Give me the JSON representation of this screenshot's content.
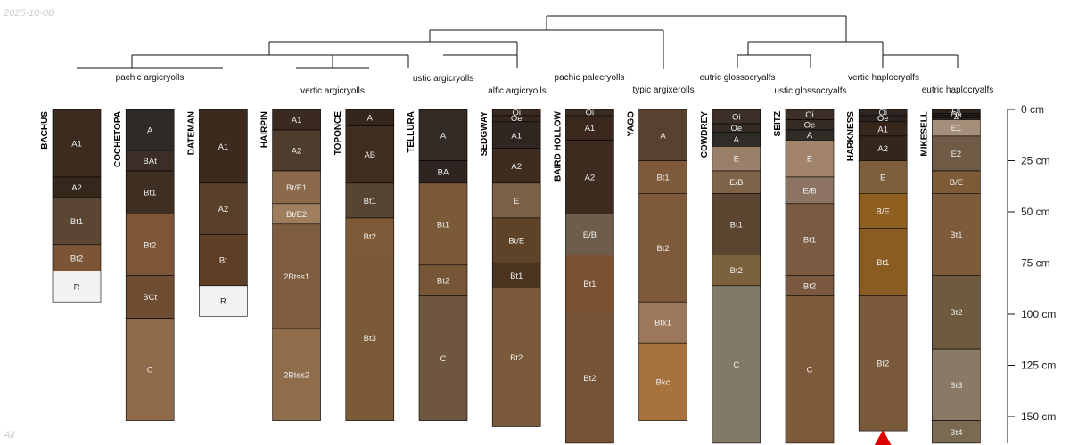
{
  "date_stamp": "2025-10-08",
  "footer_label": "All",
  "axis": {
    "unit": "cm",
    "ticks": [
      0,
      25,
      50,
      75,
      100,
      125,
      150
    ],
    "tick_labels": [
      "0 cm",
      "25 cm",
      "50 cm",
      "75 cm",
      "100 cm",
      "125 cm",
      "150 cm"
    ],
    "max_depth": 163
  },
  "clades": [
    {
      "label": "pachic argicryolls"
    },
    {
      "label": "vertic argicryolls"
    },
    {
      "label": "ustic argicryolls"
    },
    {
      "label": "alfic argicryolls"
    },
    {
      "label": "pachic palecryolls"
    },
    {
      "label": "typic argixerolls"
    },
    {
      "label": "eutric glossocryalfs"
    },
    {
      "label": "ustic glossocryalfs"
    },
    {
      "label": "vertic haplocryalfs"
    },
    {
      "label": "eutric haplocryalfs"
    }
  ],
  "profiles": [
    {
      "name": "BACHUS",
      "horizons": [
        {
          "name": "A1",
          "top": 0,
          "bottom": 33,
          "color": "#3d2b1f"
        },
        {
          "name": "A2",
          "top": 33,
          "bottom": 43,
          "color": "#35271c"
        },
        {
          "name": "Bt1",
          "top": 43,
          "bottom": 66,
          "color": "#5a4632"
        },
        {
          "name": "Bt2",
          "top": 66,
          "bottom": 79,
          "color": "#7b5535"
        },
        {
          "name": "R",
          "top": 79,
          "bottom": 94,
          "color": "#f2f2f2"
        }
      ]
    },
    {
      "name": "COCHETOPA",
      "horizons": [
        {
          "name": "A",
          "top": 0,
          "bottom": 20,
          "color": "#302a26"
        },
        {
          "name": "BAt",
          "top": 20,
          "bottom": 30,
          "color": "#3a2e26"
        },
        {
          "name": "Bt1",
          "top": 30,
          "bottom": 51,
          "color": "#3f2e22"
        },
        {
          "name": "Bt2",
          "top": 51,
          "bottom": 81,
          "color": "#7d5638"
        },
        {
          "name": "BCt",
          "top": 81,
          "bottom": 102,
          "color": "#6f4d33"
        },
        {
          "name": "C",
          "top": 102,
          "bottom": 152,
          "color": "#8f6a4b"
        }
      ]
    },
    {
      "name": "DATEMAN",
      "horizons": [
        {
          "name": "A1",
          "top": 0,
          "bottom": 36,
          "color": "#3d2a1f"
        },
        {
          "name": "A2",
          "top": 36,
          "bottom": 61,
          "color": "#573f2a"
        },
        {
          "name": "Bt",
          "top": 61,
          "bottom": 86,
          "color": "#5e3e25"
        },
        {
          "name": "R",
          "top": 86,
          "bottom": 101,
          "color": "#f2f2f2"
        }
      ]
    },
    {
      "name": "HAIRPIN",
      "horizons": [
        {
          "name": "A1",
          "top": 0,
          "bottom": 10,
          "color": "#3a2a1f"
        },
        {
          "name": "A2",
          "top": 10,
          "bottom": 30,
          "color": "#4e3c2e"
        },
        {
          "name": "Bt/E1",
          "top": 30,
          "bottom": 46,
          "color": "#8a6a4b"
        },
        {
          "name": "Bt/E2",
          "top": 46,
          "bottom": 56,
          "color": "#9f7e5e"
        },
        {
          "name": "2Btss1",
          "top": 56,
          "bottom": 107,
          "color": "#7d5d3d"
        },
        {
          "name": "2Btss2",
          "top": 107,
          "bottom": 152,
          "color": "#8f6d4b"
        }
      ]
    },
    {
      "name": "TOPONCE",
      "horizons": [
        {
          "name": "A",
          "top": 0,
          "bottom": 8,
          "color": "#35261b"
        },
        {
          "name": "AB",
          "top": 8,
          "bottom": 36,
          "color": "#3f2e20"
        },
        {
          "name": "Bt1",
          "top": 36,
          "bottom": 53,
          "color": "#574432"
        },
        {
          "name": "Bt2",
          "top": 53,
          "bottom": 71,
          "color": "#7e5a38"
        },
        {
          "name": "Bt3",
          "top": 71,
          "bottom": 152,
          "color": "#7b5a38"
        }
      ]
    },
    {
      "name": "TELLURA",
      "horizons": [
        {
          "name": "A",
          "top": 0,
          "bottom": 25,
          "color": "#322a25"
        },
        {
          "name": "BA",
          "top": 25,
          "bottom": 36,
          "color": "#2e2520"
        },
        {
          "name": "Bt1",
          "top": 36,
          "bottom": 76,
          "color": "#7b5a37"
        },
        {
          "name": "Bt2",
          "top": 76,
          "bottom": 91,
          "color": "#775537"
        },
        {
          "name": "C",
          "top": 91,
          "bottom": 152,
          "color": "#6f563f"
        }
      ]
    },
    {
      "name": "SEDGWAY",
      "horizons": [
        {
          "name": "Oi",
          "top": 0,
          "bottom": 3,
          "color": "#3a2a20"
        },
        {
          "name": "Oe",
          "top": 3,
          "bottom": 6,
          "color": "#352720"
        },
        {
          "name": "A1",
          "top": 6,
          "bottom": 19,
          "color": "#2f2622"
        },
        {
          "name": "A2",
          "top": 19,
          "bottom": 36,
          "color": "#3e2c1f"
        },
        {
          "name": "E",
          "top": 36,
          "bottom": 53,
          "color": "#7b6046"
        },
        {
          "name": "Bt/E",
          "top": 53,
          "bottom": 75,
          "color": "#5f4328"
        },
        {
          "name": "Bt1",
          "top": 75,
          "bottom": 87,
          "color": "#4a331f"
        },
        {
          "name": "Bt2",
          "top": 87,
          "bottom": 155,
          "color": "#7a5a3b"
        }
      ]
    },
    {
      "name": "BAIRD HOLLOW",
      "horizons": [
        {
          "name": "Oi",
          "top": 0,
          "bottom": 3,
          "color": "#3a2c22"
        },
        {
          "name": "A1",
          "top": 3,
          "bottom": 15,
          "color": "#3a281c"
        },
        {
          "name": "A2",
          "top": 15,
          "bottom": 51,
          "color": "#3c2b1e"
        },
        {
          "name": "E/B",
          "top": 51,
          "bottom": 71,
          "color": "#6f5d4c"
        },
        {
          "name": "Bt1",
          "top": 71,
          "bottom": 99,
          "color": "#7a5232"
        },
        {
          "name": "Bt2",
          "top": 99,
          "bottom": 163,
          "color": "#785234"
        }
      ]
    },
    {
      "name": "YAGO",
      "horizons": [
        {
          "name": "A",
          "top": 0,
          "bottom": 25,
          "color": "#574230"
        },
        {
          "name": "Bt1",
          "top": 25,
          "bottom": 41,
          "color": "#7f5a3b"
        },
        {
          "name": "Bt2",
          "top": 41,
          "bottom": 94,
          "color": "#7e5a3b"
        },
        {
          "name": "Btk1",
          "top": 94,
          "bottom": 114,
          "color": "#9d775a"
        },
        {
          "name": "Bkc",
          "top": 114,
          "bottom": 152,
          "color": "#a8723f"
        }
      ]
    },
    {
      "name": "COWDREY",
      "horizons": [
        {
          "name": "Oi",
          "top": 0,
          "bottom": 7,
          "color": "#3b2f28"
        },
        {
          "name": "Oe",
          "top": 7,
          "bottom": 11,
          "color": "#342b25"
        },
        {
          "name": "A",
          "top": 11,
          "bottom": 18,
          "color": "#2f2b27"
        },
        {
          "name": "E",
          "top": 18,
          "bottom": 30,
          "color": "#9a8068"
        },
        {
          "name": "E/B",
          "top": 30,
          "bottom": 41,
          "color": "#806449"
        },
        {
          "name": "Bt1",
          "top": 41,
          "bottom": 71,
          "color": "#5b4530"
        },
        {
          "name": "Bt2",
          "top": 71,
          "bottom": 86,
          "color": "#7a603c"
        },
        {
          "name": "C",
          "top": 86,
          "bottom": 163,
          "color": "#807a66"
        }
      ]
    },
    {
      "name": "SEITZ",
      "horizons": [
        {
          "name": "Oi",
          "top": 0,
          "bottom": 5,
          "color": "#3b2f28"
        },
        {
          "name": "Oe",
          "top": 5,
          "bottom": 10,
          "color": "#342b25"
        },
        {
          "name": "A",
          "top": 10,
          "bottom": 15,
          "color": "#2f2b27"
        },
        {
          "name": "E",
          "top": 15,
          "bottom": 33,
          "color": "#a1846a"
        },
        {
          "name": "E/B",
          "top": 33,
          "bottom": 46,
          "color": "#8d7361"
        },
        {
          "name": "Bt1",
          "top": 46,
          "bottom": 81,
          "color": "#7a5a40"
        },
        {
          "name": "Bt2",
          "top": 81,
          "bottom": 91,
          "color": "#7a5940"
        },
        {
          "name": "C",
          "top": 91,
          "bottom": 163,
          "color": "#7d5a3a"
        }
      ]
    },
    {
      "name": "HARKNESS",
      "horizons": [
        {
          "name": "Oi",
          "top": 0,
          "bottom": 3,
          "color": "#2e2621"
        },
        {
          "name": "Oe",
          "top": 3,
          "bottom": 6,
          "color": "#2b231e"
        },
        {
          "name": "A1",
          "top": 6,
          "bottom": 13,
          "color": "#36261b"
        },
        {
          "name": "A2",
          "top": 13,
          "bottom": 25,
          "color": "#35261c"
        },
        {
          "name": "E",
          "top": 25,
          "bottom": 41,
          "color": "#7e5f3c"
        },
        {
          "name": "B/E",
          "top": 41,
          "bottom": 58,
          "color": "#8f5f22"
        },
        {
          "name": "Bt1",
          "top": 58,
          "bottom": 91,
          "color": "#8a5c22"
        },
        {
          "name": "Bt2",
          "top": 91,
          "bottom": 157,
          "color": "#7a5a3b"
        }
      ]
    },
    {
      "name": "MIKESELL",
      "horizons": [
        {
          "name": "Oi",
          "top": 0,
          "bottom": 2,
          "color": "#2c241e"
        },
        {
          "name": "Oe",
          "top": 2,
          "bottom": 3,
          "color": "#2a221c"
        },
        {
          "name": "Oa",
          "top": 3,
          "bottom": 4,
          "color": "#28201b"
        },
        {
          "name": "A",
          "top": 4,
          "bottom": 5,
          "color": "#2f251e"
        },
        {
          "name": "E1",
          "top": 5,
          "bottom": 13,
          "color": "#a58f7a"
        },
        {
          "name": "E2",
          "top": 13,
          "bottom": 30,
          "color": "#6f5a45"
        },
        {
          "name": "B/E",
          "top": 30,
          "bottom": 41,
          "color": "#7d5b37"
        },
        {
          "name": "Bt1",
          "top": 41,
          "bottom": 81,
          "color": "#7e5b3a"
        },
        {
          "name": "Bt2",
          "top": 81,
          "bottom": 117,
          "color": "#6e5a3f"
        },
        {
          "name": "Bt3",
          "top": 117,
          "bottom": 152,
          "color": "#8a7a65"
        },
        {
          "name": "Bt4",
          "top": 152,
          "bottom": 163,
          "color": "#7a6a52"
        }
      ]
    }
  ],
  "truncation_marker": {
    "profile": "HARKNESS",
    "color": "#dd0000"
  },
  "colors": {
    "line": "#111111",
    "border": "#000000"
  }
}
